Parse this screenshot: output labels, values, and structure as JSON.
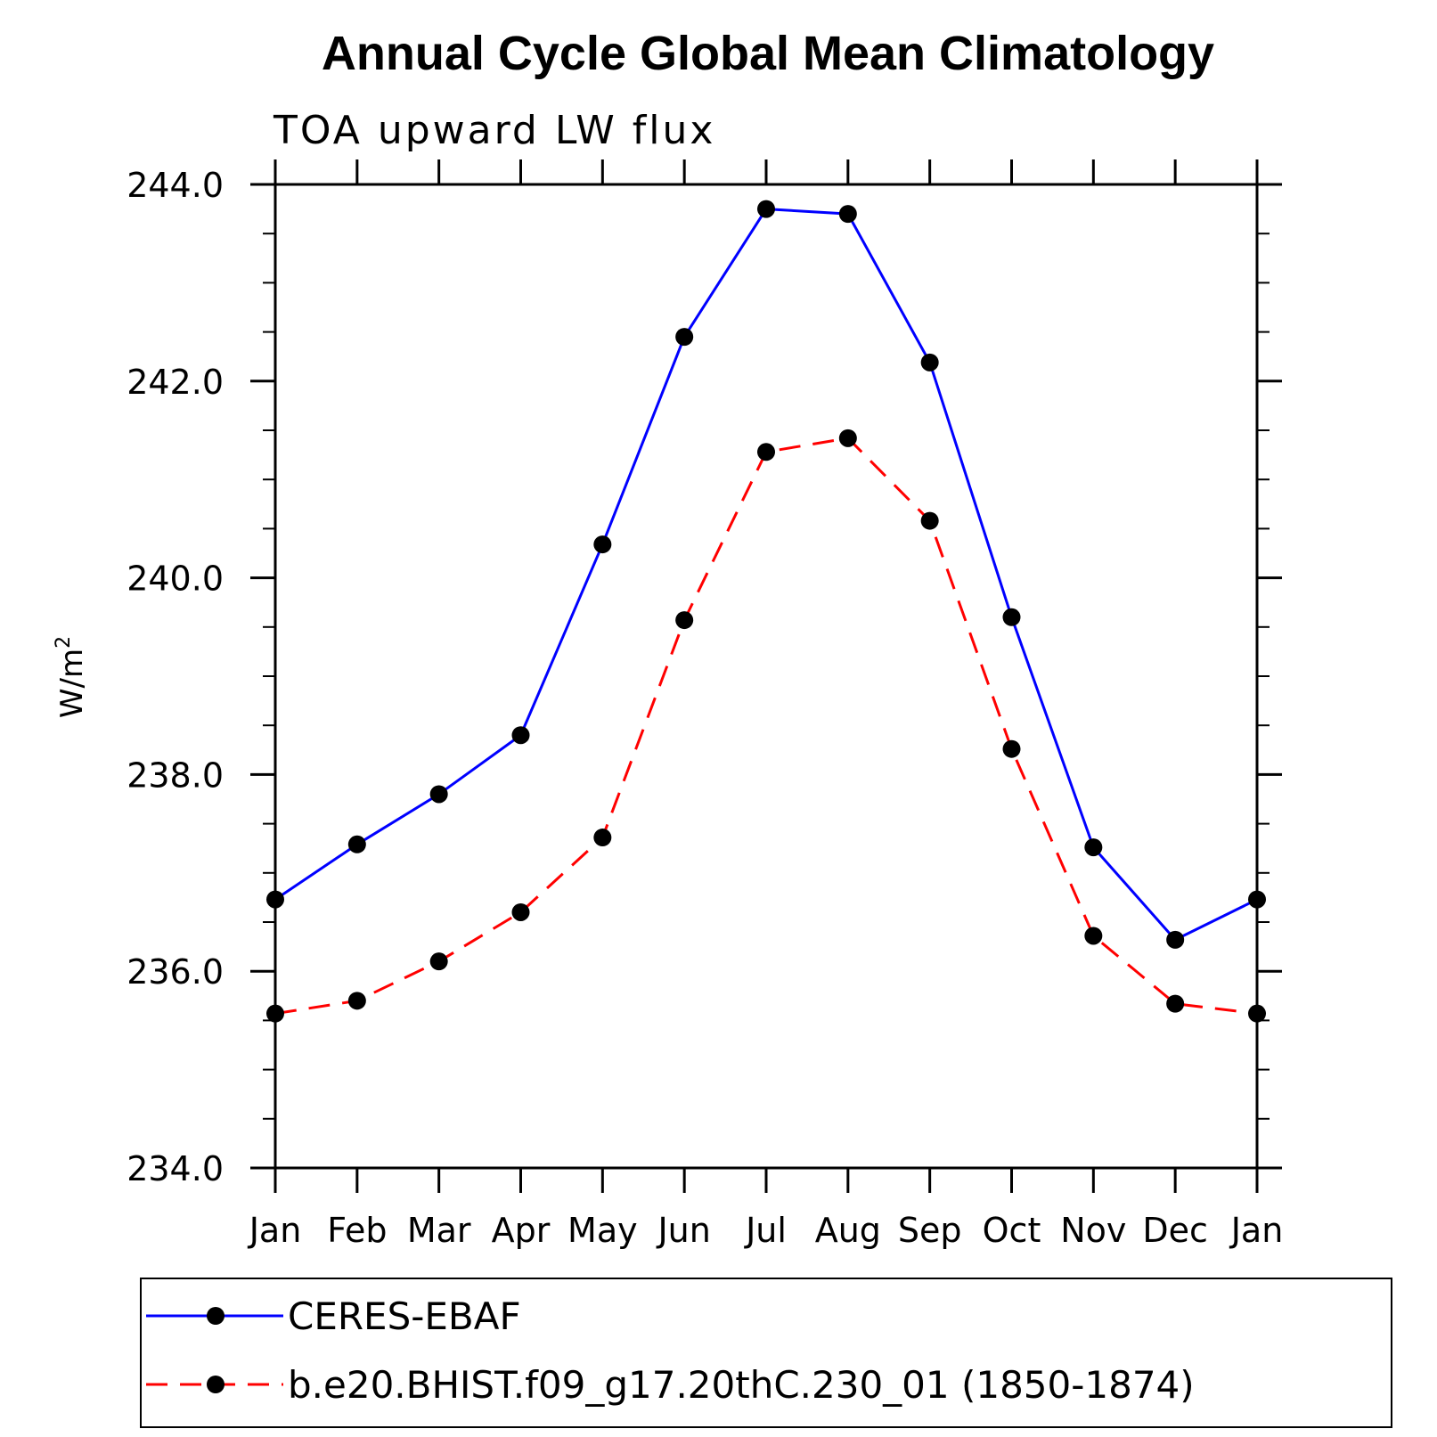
{
  "chart_data": {
    "type": "line",
    "title": "Annual Cycle Global Mean Climatology",
    "subtitle": "TOA upward LW flux",
    "xlabel": "",
    "ylabel_base": "W/m",
    "ylabel_sup": "2",
    "categories": [
      "Jan",
      "Feb",
      "Mar",
      "Apr",
      "May",
      "Jun",
      "Jul",
      "Aug",
      "Sep",
      "Oct",
      "Nov",
      "Dec",
      "Jan"
    ],
    "ylim": [
      234.0,
      244.0
    ],
    "yticks": [
      "234.0",
      "236.0",
      "238.0",
      "240.0",
      "242.0",
      "244.0"
    ],
    "grid": false,
    "legend_position": "bottom",
    "series": [
      {
        "name": "CERES-EBAF",
        "color": "#0000ff",
        "dash": "solid",
        "values": [
          236.73,
          237.29,
          237.8,
          238.4,
          240.34,
          242.45,
          243.75,
          243.7,
          242.19,
          239.6,
          237.26,
          236.32,
          236.73
        ]
      },
      {
        "name": "b.e20.BHIST.f09_g17.20thC.230_01 (1850-1874)",
        "color": "#ff0000",
        "dash": "dashed",
        "values": [
          235.57,
          235.7,
          236.1,
          236.6,
          237.36,
          239.57,
          241.28,
          241.42,
          240.58,
          238.26,
          236.36,
          235.67,
          235.57
        ]
      }
    ]
  }
}
